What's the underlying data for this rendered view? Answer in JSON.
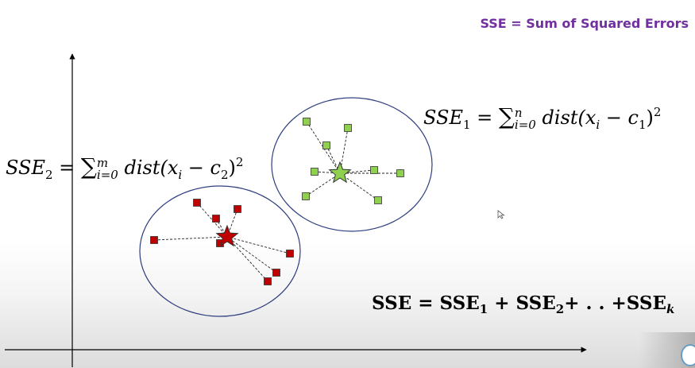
{
  "note": "SSE = Sum of Squared Errors",
  "formulas": {
    "sse1": {
      "lhs": "SSE",
      "lhs_sub": "1",
      "eq": " = ",
      "sum": "∑",
      "sum_sup": "n",
      "sum_sub": "i=0",
      "body": " dist(x",
      "x_sub": "i",
      "minus": " − c",
      "c_sub": "1",
      "close": ")",
      "power": "2"
    },
    "sse2": {
      "lhs": "SSE",
      "lhs_sub": "2",
      "eq": " = ",
      "sum": "∑",
      "sum_sup": "m",
      "sum_sub": "i=0",
      "body": " dist(x",
      "x_sub": "i",
      "minus": " − c",
      "c_sub": "2",
      "close": ")",
      "power": "2"
    },
    "total": {
      "lhs": "SSE = ",
      "t1": "SSE",
      "t1_sub": "1",
      "plus1": " + ",
      "t2": "SSE",
      "t2_sub": "2",
      "rest": "+ . . +",
      "tk": "SSE",
      "tk_sub": "k"
    }
  },
  "colors": {
    "cluster_outline": "#2f3f7f",
    "green_point": "#8fd14f",
    "red_point": "#c00000",
    "axis": "#000000",
    "note": "#7030a0"
  },
  "icons": {
    "cursor": "arrow-cursor-icon"
  },
  "clusters": [
    {
      "name": "cluster-1",
      "points": [
        [
          386,
          153
        ],
        [
          438,
          161
        ],
        [
          411,
          183
        ],
        [
          396,
          216
        ],
        [
          471,
          214
        ],
        [
          504,
          218
        ],
        [
          385,
          247
        ],
        [
          476,
          252
        ]
      ],
      "centroid": [
        428,
        218
      ],
      "fill": "#8fd14f",
      "ellipse": [
        443,
        207,
        101,
        84
      ]
    },
    {
      "name": "cluster-2",
      "points": [
        [
          248,
          255
        ],
        [
          299,
          263
        ],
        [
          272,
          275
        ],
        [
          194,
          302
        ],
        [
          277,
          306
        ],
        [
          365,
          319
        ],
        [
          348,
          343
        ],
        [
          337,
          354
        ]
      ],
      "centroid": [
        286,
        298
      ],
      "fill": "#c00000",
      "ellipse": [
        277,
        316,
        101,
        82
      ]
    }
  ]
}
